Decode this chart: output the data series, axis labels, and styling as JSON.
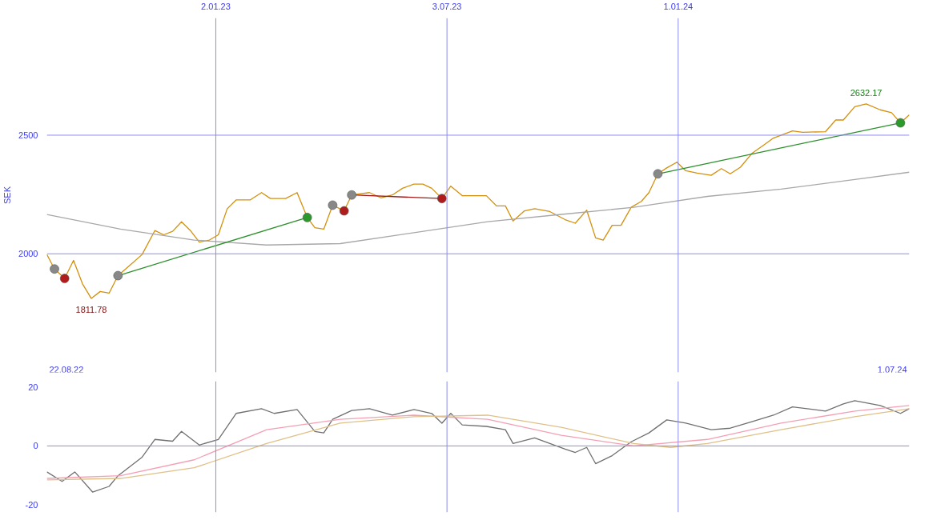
{
  "chart_data": [
    {
      "type": "line",
      "ylabel": "SEK",
      "xlim": [
        "2022-08-22",
        "2024-07-01"
      ],
      "ylim": [
        1500,
        2994
      ],
      "xticks": [
        {
          "value": "2023-01-02",
          "label": "2.01.23"
        },
        {
          "value": "2023-07-03",
          "label": "3.07.23"
        },
        {
          "value": "2024-01-01",
          "label": "1.01.24"
        }
      ],
      "yticks": [
        2000,
        2500
      ],
      "grid": true,
      "annotations": [
        {
          "text": "1811.78",
          "x": "2022-09-26",
          "y": 1811.78
        },
        {
          "text": "2632.17",
          "x": "2024-05-28",
          "y": 2632.17
        },
        "22.08.22",
        "1.07.24"
      ],
      "series": [
        {
          "color": "#d4900c",
          "x": [
            "2022-08-22",
            "2022-08-28",
            "2022-09-05",
            "2022-09-12",
            "2022-09-19",
            "2022-09-26",
            "2022-10-03",
            "2022-10-10",
            "2022-10-17",
            "2022-10-25",
            "2022-11-05",
            "2022-11-15",
            "2022-11-22",
            "2022-11-29",
            "2022-12-06",
            "2022-12-13",
            "2022-12-20",
            "2022-12-28",
            "2023-01-04",
            "2023-01-11",
            "2023-01-18",
            "2023-01-29",
            "2023-02-07",
            "2023-02-14",
            "2023-02-26",
            "2023-03-07",
            "2023-03-15",
            "2023-03-21",
            "2023-03-28",
            "2023-04-04",
            "2023-04-13",
            "2023-04-19",
            "2023-05-03",
            "2023-05-12",
            "2023-05-21",
            "2023-05-29",
            "2023-06-07",
            "2023-06-14",
            "2023-06-21",
            "2023-06-29",
            "2023-07-06",
            "2023-07-15",
            "2023-08-03",
            "2023-08-11",
            "2023-08-18",
            "2023-08-24",
            "2023-09-02",
            "2023-09-10",
            "2023-09-22",
            "2023-10-04",
            "2023-10-12",
            "2023-10-21",
            "2023-10-28",
            "2023-11-03",
            "2023-11-10",
            "2023-11-17",
            "2023-11-25",
            "2023-12-03",
            "2023-12-09",
            "2023-12-16",
            "2023-12-23",
            "2023-12-31",
            "2024-01-07",
            "2024-01-16",
            "2024-01-27",
            "2024-02-04",
            "2024-02-11",
            "2024-02-19",
            "2024-02-28",
            "2024-03-08",
            "2024-03-16",
            "2024-03-31",
            "2024-04-08",
            "2024-04-26",
            "2024-05-04",
            "2024-05-10",
            "2024-05-19",
            "2024-05-28",
            "2024-06-08",
            "2024-06-17",
            "2024-06-24",
            "2024-07-01"
          ],
          "values": [
            1997,
            1936,
            1896,
            1972,
            1874,
            1811.78,
            1841,
            1834,
            1908,
            1945,
            1997,
            2098,
            2080,
            2095,
            2135,
            2098,
            2049,
            2058,
            2080,
            2190,
            2227,
            2227,
            2258,
            2233,
            2233,
            2258,
            2153,
            2110,
            2104,
            2205,
            2181,
            2248,
            2258,
            2236,
            2248,
            2276,
            2294,
            2294,
            2276,
            2233,
            2285,
            2245,
            2245,
            2202,
            2202,
            2138,
            2181,
            2190,
            2178,
            2144,
            2129,
            2184,
            2067,
            2058,
            2120,
            2120,
            2196,
            2221,
            2258,
            2337,
            2362,
            2386,
            2350,
            2340,
            2331,
            2359,
            2337,
            2365,
            2423,
            2457,
            2488,
            2518,
            2512,
            2515,
            2564,
            2564,
            2620,
            2632.17,
            2607,
            2595,
            2552,
            2586
          ]
        },
        {
          "color": "#a8a8a8",
          "x": [
            "2022-08-22",
            "2022-10-19",
            "2022-12-16",
            "2023-02-11",
            "2023-04-10",
            "2023-06-07",
            "2023-08-04",
            "2023-10-01",
            "2023-11-27",
            "2024-01-24",
            "2024-03-22",
            "2024-05-19",
            "2024-07-01"
          ],
          "values": [
            2166,
            2104,
            2058,
            2037,
            2043,
            2089,
            2135,
            2166,
            2196,
            2242,
            2273,
            2313,
            2344
          ]
        },
        {
          "color": "#2a8f2a",
          "x": [
            "2022-10-17",
            "2023-03-15"
          ],
          "values": [
            1908,
            2153
          ]
        },
        {
          "color": "#2a8f2a",
          "x": [
            "2023-12-16",
            "2024-06-24"
          ],
          "values": [
            2337,
            2552
          ]
        },
        {
          "color": "#a01818",
          "x": [
            "2023-04-19",
            "2023-06-29"
          ],
          "values": [
            2248,
            2233
          ]
        },
        {
          "type": "scatter",
          "marker": "circle",
          "color": "#888888",
          "x": [
            "2022-08-28",
            "2022-10-17",
            "2023-04-04",
            "2023-04-19",
            "2023-12-16"
          ],
          "values": [
            1936,
            1908,
            2205,
            2248,
            2337
          ]
        },
        {
          "type": "scatter",
          "marker": "circle",
          "color": "#b01c1c",
          "x": [
            "2022-09-05",
            "2023-04-13",
            "2023-06-29"
          ],
          "values": [
            1896,
            2181,
            2233
          ]
        },
        {
          "type": "scatter",
          "marker": "circle",
          "color": "#2a9a2a",
          "x": [
            "2023-03-15",
            "2024-06-24"
          ],
          "values": [
            2153,
            2552
          ]
        }
      ]
    },
    {
      "type": "line",
      "xlim": [
        "2022-08-22",
        "2024-07-01"
      ],
      "ylim": [
        -22.5,
        21.9
      ],
      "yticks": [
        -20,
        0,
        20
      ],
      "tick_labels": "y",
      "grid": "x",
      "xticks": [
        {
          "value": "2023-01-02",
          "label": null
        },
        {
          "value": "2023-07-03",
          "label": null
        },
        {
          "value": "2024-01-01",
          "label": null
        }
      ],
      "ref_lines": [
        {
          "axis": "y",
          "value": 0,
          "color": "#8c8cf0"
        }
      ],
      "series": [
        {
          "color": "#707070",
          "x": [
            "2022-08-22",
            "2022-09-03",
            "2022-09-13",
            "2022-09-27",
            "2022-10-10",
            "2022-10-17",
            "2022-11-05",
            "2022-11-15",
            "2022-11-29",
            "2022-12-06",
            "2022-12-20",
            "2023-01-04",
            "2023-01-18",
            "2023-02-07",
            "2023-02-17",
            "2023-03-07",
            "2023-03-21",
            "2023-03-28",
            "2023-04-04",
            "2023-04-19",
            "2023-05-03",
            "2023-05-21",
            "2023-06-07",
            "2023-06-21",
            "2023-06-29",
            "2023-07-06",
            "2023-07-15",
            "2023-08-03",
            "2023-08-18",
            "2023-08-24",
            "2023-09-10",
            "2023-10-04",
            "2023-10-12",
            "2023-10-21",
            "2023-10-28",
            "2023-11-10",
            "2023-11-25",
            "2023-12-09",
            "2023-12-23",
            "2024-01-07",
            "2024-01-27",
            "2024-02-11",
            "2024-02-28",
            "2024-03-16",
            "2024-03-31",
            "2024-04-26",
            "2024-05-10",
            "2024-05-19",
            "2024-06-08",
            "2024-06-24",
            "2024-07-01"
          ],
          "values": [
            -8.8,
            -12,
            -8.8,
            -15.6,
            -13.7,
            -10.1,
            -3.8,
            2.2,
            1.6,
            4.9,
            0.3,
            2.2,
            11,
            12.6,
            11,
            12.3,
            4.9,
            4.4,
            9,
            12,
            12.6,
            10.4,
            12.3,
            11,
            7.7,
            11,
            7.1,
            6.6,
            5.5,
            0.8,
            2.7,
            -1.1,
            -2.2,
            -0.5,
            -6,
            -3.3,
            1.4,
            4.4,
            8.8,
            7.7,
            5.5,
            6,
            8.2,
            10.4,
            13.2,
            11.8,
            14.2,
            15.3,
            13.7,
            11,
            12.6
          ]
        },
        {
          "color": "#f4a0b4",
          "x": [
            "2022-08-22",
            "2022-10-19",
            "2022-12-16",
            "2023-02-11",
            "2023-04-10",
            "2023-06-07",
            "2023-08-04",
            "2023-10-01",
            "2023-11-27",
            "2024-01-24",
            "2024-03-22",
            "2024-05-19",
            "2024-07-01"
          ],
          "values": [
            -11,
            -10.1,
            -4.7,
            5.5,
            9,
            10.4,
            9,
            3.6,
            0,
            2.2,
            7.7,
            11.8,
            13.7
          ]
        },
        {
          "color": "#e0c088",
          "x": [
            "2022-08-22",
            "2022-10-19",
            "2022-12-16",
            "2023-02-11",
            "2023-04-10",
            "2023-06-07",
            "2023-08-04",
            "2023-10-01",
            "2023-11-27",
            "2023-12-26",
            "2024-01-24",
            "2024-03-22",
            "2024-05-19",
            "2024-07-01"
          ],
          "values": [
            -11.5,
            -11,
            -7.4,
            0.8,
            7.7,
            9.9,
            10.4,
            6.3,
            0.8,
            -0.5,
            0.8,
            5.5,
            9.9,
            12.6
          ]
        }
      ]
    }
  ]
}
